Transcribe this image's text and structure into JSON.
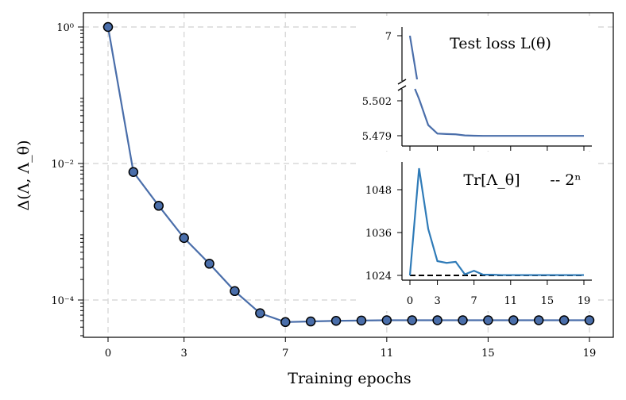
{
  "chart_data": [
    {
      "type": "line",
      "scale": "log",
      "ylabel": "Δ(Λ, Λ_θ)",
      "xlabel": "Training epochs",
      "x": [
        0,
        1,
        2,
        3,
        4,
        5,
        6,
        7,
        8,
        9,
        10,
        11,
        12,
        13,
        14,
        15,
        16,
        17,
        18,
        19
      ],
      "values": [
        1.0,
        0.0075,
        0.0024,
        0.00081,
        0.00034,
        0.000135,
        6.4e-05,
        4.75e-05,
        4.85e-05,
        4.95e-05,
        5e-05,
        5.05e-05,
        5.05e-05,
        5.05e-05,
        5.05e-05,
        5.05e-05,
        5.05e-05,
        5.05e-05,
        5.05e-05,
        5.05e-05
      ],
      "xticks": [
        "0",
        "3",
        "7",
        "11",
        "15",
        "19"
      ],
      "yticks": [
        {
          "value": 1,
          "label": "10⁰"
        },
        {
          "value": 0.01,
          "label": "10⁻²"
        },
        {
          "value": 0.0001,
          "label": "10⁻⁴"
        }
      ],
      "series_color": "#4a6eaa"
    },
    {
      "type": "line",
      "title": "Test loss L(θ)",
      "x": [
        0,
        1,
        2,
        3,
        4,
        5,
        6,
        7,
        8,
        9,
        10,
        11,
        12,
        13,
        14,
        15,
        16,
        17,
        18,
        19
      ],
      "values": [
        7.0,
        5.5032,
        5.486,
        5.4804,
        5.4801,
        5.4799,
        5.4792,
        5.479,
        5.4789,
        5.4789,
        5.4789,
        5.4789,
        5.4789,
        5.4789,
        5.4789,
        5.4789,
        5.4789,
        5.4789,
        5.4789,
        5.4789
      ],
      "yticks": [
        "7",
        "5.502",
        "5.479"
      ],
      "axis_break": "broken y-axis between 5.51 and 7"
    },
    {
      "type": "line",
      "title": "Tr[Λ_θ]",
      "legend": "-- 2ⁿ",
      "reference_value": 1024,
      "x": [
        0,
        1,
        2,
        3,
        4,
        5,
        6,
        7,
        8,
        9,
        10,
        11,
        12,
        13,
        14,
        15,
        16,
        17,
        18,
        19
      ],
      "values": [
        1024,
        1054,
        1037,
        1028,
        1027.5,
        1027.8,
        1024.3,
        1025.3,
        1024.2,
        1024.2,
        1024.1,
        1024.1,
        1024.1,
        1024.1,
        1024.1,
        1024.1,
        1024.1,
        1024.1,
        1024.1,
        1024.1
      ],
      "xticks": [
        "0",
        "3",
        "7",
        "11",
        "15",
        "19"
      ],
      "yticks": [
        "1048",
        "1036",
        "1024"
      ],
      "series_color": "#2f7bb8"
    }
  ]
}
